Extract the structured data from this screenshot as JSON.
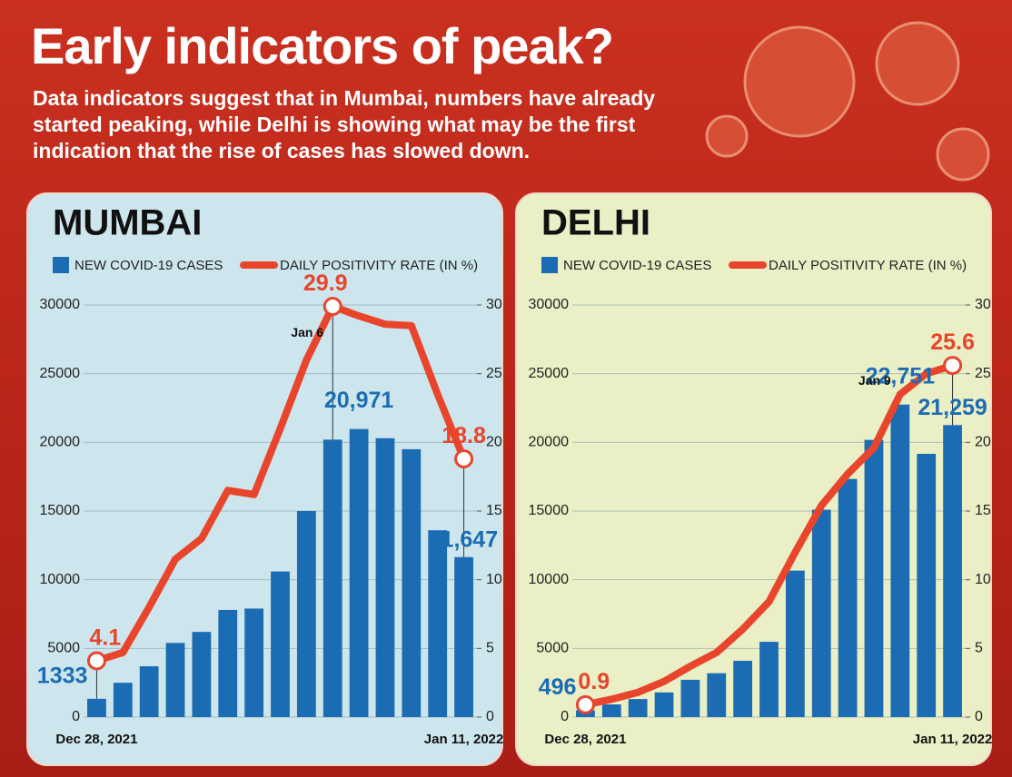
{
  "header": {
    "title": "Early indicators of peak?",
    "subtitle": "Data indicators suggest that in Mumbai, numbers have already started peaking, while Delhi is showing what may be the first indication that the rise of cases has slowed down."
  },
  "chart_data": [
    {
      "type": "bar-line",
      "title": "MUMBAI",
      "background": "#cde6ee",
      "categories": [
        "Dec 28, 2021",
        null,
        null,
        null,
        null,
        null,
        null,
        null,
        null,
        null,
        null,
        null,
        null,
        null,
        "Jan 11, 2022"
      ],
      "series": [
        {
          "name": "NEW COVID-19 CASES",
          "color": "#1c6cb3",
          "values": [
            1333,
            2500,
            3700,
            5400,
            6200,
            7800,
            7900,
            10600,
            15000,
            20200,
            20971,
            20300,
            19500,
            13600,
            11647
          ],
          "value_labels": [
            "1333",
            null,
            null,
            null,
            null,
            null,
            null,
            null,
            null,
            null,
            "20,971",
            null,
            null,
            null,
            "11,647"
          ]
        },
        {
          "name": "DAILY POSITIVITY RATE (IN %)",
          "color": "#e8452c",
          "axis": "y2",
          "values": [
            4.1,
            4.7,
            8,
            11.5,
            13,
            16.5,
            16.2,
            21,
            26,
            29.9,
            29.2,
            28.6,
            28.5,
            23.5,
            18.8
          ],
          "value_labels": [
            "4.1",
            null,
            null,
            null,
            null,
            null,
            null,
            null,
            null,
            "29.9",
            null,
            null,
            null,
            null,
            "18.8"
          ]
        }
      ],
      "annotations": [
        {
          "text": "Jan 6",
          "index": 9
        }
      ],
      "ylim": [
        0,
        30000
      ],
      "yticks": [
        0,
        5000,
        10000,
        15000,
        20000,
        25000,
        30000
      ],
      "y2lim": [
        0,
        30
      ],
      "y2ticks": [
        0,
        5,
        10,
        15,
        20,
        25,
        30
      ],
      "grid": true
    },
    {
      "type": "bar-line",
      "title": "DELHI",
      "background": "#eaefc6",
      "categories": [
        "Dec 28, 2021",
        null,
        null,
        null,
        null,
        null,
        null,
        null,
        null,
        null,
        null,
        null,
        null,
        null,
        "Jan 11, 2022"
      ],
      "series": [
        {
          "name": "NEW COVID-19 CASES",
          "color": "#1c6cb3",
          "values": [
            496,
            923,
            1313,
            1796,
            2716,
            3194,
            4099,
            5481,
            10665,
            15097,
            17335,
            20181,
            22751,
            19166,
            21259
          ],
          "value_labels": [
            "496",
            null,
            null,
            null,
            null,
            null,
            null,
            null,
            null,
            null,
            null,
            null,
            "22,751",
            null,
            "21,259"
          ]
        },
        {
          "name": "DAILY POSITIVITY RATE (IN %)",
          "color": "#e8452c",
          "axis": "y2",
          "values": [
            0.9,
            1.3,
            1.8,
            2.6,
            3.7,
            4.7,
            6.4,
            8.4,
            12,
            15.4,
            17.7,
            19.6,
            23.5,
            25,
            25.6
          ],
          "value_labels": [
            "0.9",
            null,
            null,
            null,
            null,
            null,
            null,
            null,
            null,
            null,
            null,
            null,
            null,
            null,
            "25.6"
          ]
        }
      ],
      "annotations": [
        {
          "text": "Jan 9",
          "index": 12
        }
      ],
      "ylim": [
        0,
        30000
      ],
      "yticks": [
        0,
        5000,
        10000,
        15000,
        20000,
        25000,
        30000
      ],
      "y2lim": [
        0,
        30
      ],
      "y2ticks": [
        0,
        5,
        10,
        15,
        20,
        25,
        30
      ],
      "grid": true
    }
  ]
}
